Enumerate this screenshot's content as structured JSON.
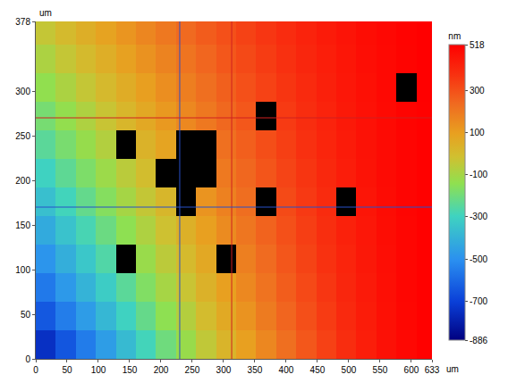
{
  "chart_data": {
    "type": "heatmap",
    "xlabel": "um",
    "ylabel": "um",
    "colorbar_title": "nm",
    "x": [
      16,
      48,
      80,
      112,
      144,
      176,
      208,
      240,
      272,
      304,
      336,
      368,
      400,
      432,
      464,
      496,
      528,
      560,
      592,
      624
    ],
    "y": [
      16,
      48,
      80,
      112,
      144,
      176,
      208,
      240,
      272,
      304,
      336,
      368
    ],
    "z": [
      [
        -746,
        -648,
        -554,
        -463,
        -373,
        -288,
        -204,
        -124,
        -47,
        25,
        96,
        163,
        225,
        283,
        337,
        387,
        429,
        467,
        496,
        515
      ],
      [
        -642,
        -552,
        -466,
        -382,
        -300,
        -222,
        -144,
        -71,
        0,
        66,
        131,
        192,
        249,
        303,
        352,
        398,
        436,
        471,
        497,
        515
      ],
      [
        -560,
        -476,
        -396,
        -318,
        -242,
        -169,
        -97,
        -30,
        37,
        98,
        159,
        215,
        269,
        318,
        363,
        406,
        442,
        474,
        499,
        516
      ],
      [
        -488,
        -410,
        -335,
        -262,
        null,
        -123,
        -56,
        7,
        69,
        null,
        182,
        235,
        285,
        331,
        374,
        414,
        447,
        477,
        500,
        516
      ],
      [
        -422,
        -349,
        -279,
        -211,
        -144,
        -81,
        -19,
        41,
        98,
        152,
        205,
        254,
        300,
        344,
        383,
        421,
        452,
        480,
        501,
        516
      ],
      [
        -358,
        -290,
        -225,
        -162,
        -100,
        -41,
        18,
        null,
        127,
        177,
        226,
        null,
        315,
        355,
        392,
        null,
        456,
        482,
        502,
        516
      ],
      [
        -300,
        -236,
        -176,
        -117,
        -59,
        -4,
        null,
        null,
        null,
        199,
        245,
        288,
        329,
        366,
        401,
        433,
        461,
        485,
        503,
        516
      ],
      [
        -243,
        -184,
        -128,
        -73,
        null,
        33,
        83,
        null,
        null,
        221,
        264,
        304,
        342,
        377,
        409,
        439,
        465,
        487,
        504,
        516
      ],
      [
        -189,
        -134,
        -82,
        -31,
        20,
        67,
        114,
        159,
        202,
        242,
        282,
        null,
        354,
        387,
        417,
        445,
        468,
        489,
        505,
        516
      ],
      [
        -138,
        -87,
        -38,
        9,
        56,
        100,
        144,
        185,
        225,
        262,
        299,
        334,
        366,
        396,
        424,
        450,
        472,
        491,
        null,
        517
      ],
      [
        -86,
        -39,
        5,
        49,
        92,
        133,
        173,
        211,
        248,
        282,
        316,
        348,
        378,
        406,
        431,
        455,
        476,
        493,
        507,
        517
      ],
      [
        -38,
        5,
        47,
        87,
        126,
        164,
        201,
        236,
        270,
        301,
        333,
        362,
        389,
        415,
        438,
        460,
        479,
        495,
        508,
        517
      ]
    ],
    "zlim": [
      -886,
      518
    ],
    "colorbar_ticks": [
      518,
      300,
      100,
      -100,
      -300,
      -500,
      -700,
      -886
    ],
    "xlim": [
      0,
      633
    ],
    "ylim": [
      0,
      378
    ],
    "xticks": [
      0,
      50,
      100,
      150,
      200,
      250,
      300,
      350,
      400,
      450,
      500,
      550,
      600,
      633
    ],
    "yticks": [
      0,
      50,
      100,
      150,
      200,
      250,
      300,
      378
    ],
    "cursors": [
      {
        "axis": "x",
        "value": 230,
        "color": "#2850c8"
      },
      {
        "axis": "x",
        "value": 313,
        "color": "#d02020"
      },
      {
        "axis": "y",
        "value": 270,
        "color": "#d02020"
      },
      {
        "axis": "y",
        "value": 170,
        "color": "#2850c8"
      }
    ],
    "grid": false
  }
}
